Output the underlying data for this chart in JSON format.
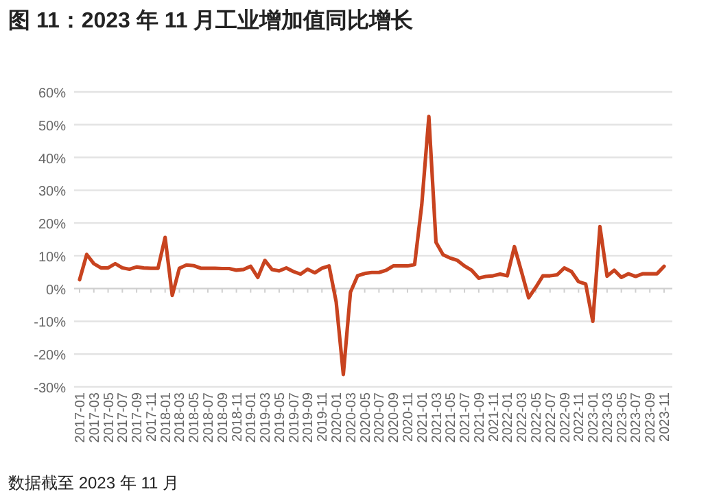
{
  "chart_data": {
    "type": "line",
    "title": "图 11：2023 年 11 月工业增加值同比增长",
    "categories": [
      "2017-01",
      null,
      "2017-03",
      null,
      "2017-05",
      null,
      "2017-07",
      null,
      "2017-09",
      null,
      "2017-11",
      null,
      "2018-01",
      null,
      "2018-03",
      null,
      "2018-05",
      null,
      "2018-07",
      null,
      "2018-09",
      null,
      "2018-11",
      null,
      "2019-01",
      null,
      "2019-03",
      null,
      "2019-05",
      null,
      "2019-07",
      null,
      "2019-09",
      null,
      "2019-11",
      null,
      "2020-01",
      null,
      "2020-03",
      null,
      "2020-05",
      null,
      "2020-07",
      null,
      "2020-09",
      null,
      "2020-11",
      null,
      "2021-01",
      null,
      "2021-03",
      null,
      "2021-05",
      null,
      "2021-07",
      null,
      "2021-09",
      null,
      "2021-11",
      null,
      "2022-01",
      null,
      "2022-03",
      null,
      "2022-05",
      null,
      "2022-07",
      null,
      "2022-09",
      null,
      "2022-11",
      null,
      "2023-01",
      null,
      "2023-03",
      null,
      "2023-05",
      null,
      "2023-07",
      null,
      "2023-09",
      null,
      "2023-11"
    ],
    "series": [
      {
        "color": "#c8431f",
        "values": [
          2.7,
          10.4,
          7.6,
          6.3,
          6.3,
          7.6,
          6.3,
          5.9,
          6.6,
          6.3,
          6.2,
          6.2,
          15.6,
          -2.1,
          6.2,
          7.2,
          7.0,
          6.2,
          6.2,
          6.2,
          6.1,
          6.1,
          5.6,
          5.8,
          6.8,
          3.4,
          8.6,
          5.8,
          5.4,
          6.3,
          5.2,
          4.4,
          5.9,
          4.8,
          6.2,
          6.9,
          -4.1,
          -26.2,
          -1.1,
          3.9,
          4.6,
          4.9,
          4.9,
          5.6,
          6.9,
          6.9,
          6.9,
          7.3,
          25.5,
          52.5,
          14.1,
          10.3,
          9.3,
          8.6,
          6.9,
          5.6,
          3.2,
          3.7,
          3.9,
          4.4,
          3.9,
          12.8,
          5.1,
          -2.8,
          0.4,
          3.9,
          3.9,
          4.2,
          6.3,
          5.2,
          2.1,
          1.4,
          -10.0,
          18.9,
          3.8,
          5.6,
          3.4,
          4.5,
          3.7,
          4.5,
          4.5,
          4.5,
          6.8
        ]
      }
    ],
    "ylim": [
      -30,
      60
    ],
    "yticks": [
      {
        "value": -30,
        "label": "-30%"
      },
      {
        "value": -20,
        "label": "-20%"
      },
      {
        "value": -10,
        "label": "-10%"
      },
      {
        "value": 0,
        "label": "0%"
      },
      {
        "value": 10,
        "label": "10%"
      },
      {
        "value": 20,
        "label": "20%"
      },
      {
        "value": 30,
        "label": "30%"
      },
      {
        "value": 40,
        "label": "40%"
      },
      {
        "value": 50,
        "label": "50%"
      },
      {
        "value": 60,
        "label": "60%"
      }
    ],
    "grid": "y",
    "annotations": [
      "数据截至 2023 年 11 月"
    ]
  }
}
